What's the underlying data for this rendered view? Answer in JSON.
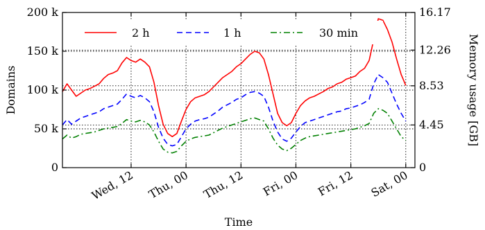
{
  "chart_data": {
    "type": "line",
    "title": "",
    "xlabel": "Time",
    "ylabel": "Domains",
    "y2label": "Memory usage [GB]",
    "grid": true,
    "legend_position": "top",
    "x_unit": "hours since Tue 21:00",
    "x_range": [
      0,
      77
    ],
    "x_ticks": [
      {
        "x": 15,
        "label": "Wed, 12"
      },
      {
        "x": 27,
        "label": "Thu, 00"
      },
      {
        "x": 39,
        "label": "Thu, 12"
      },
      {
        "x": 51,
        "label": "Fri, 00"
      },
      {
        "x": 63,
        "label": "Fri, 12"
      },
      {
        "x": 75,
        "label": "Sat, 00"
      }
    ],
    "ylim": [
      0,
      200000
    ],
    "y_ticks": [
      {
        "v": 0,
        "label": "0"
      },
      {
        "v": 50000,
        "label": "50 k"
      },
      {
        "v": 100000,
        "label": "100 k"
      },
      {
        "v": 150000,
        "label": "150 k"
      },
      {
        "v": 200000,
        "label": "200 k"
      }
    ],
    "y2_ticks": [
      {
        "v": 0,
        "label": "0"
      },
      {
        "v": 55000,
        "label": "4.45"
      },
      {
        "v": 105500,
        "label": "8.53"
      },
      {
        "v": 151500,
        "label": "12.26"
      },
      {
        "v": 200000,
        "label": "16.17"
      }
    ],
    "x": [
      0,
      1,
      2,
      3,
      4,
      5,
      6,
      7,
      8,
      9,
      10,
      11,
      12,
      13,
      14,
      15,
      16,
      17,
      18,
      19,
      20,
      21,
      22,
      23,
      24,
      25,
      26,
      27,
      28,
      29,
      30,
      31,
      32,
      33,
      34,
      35,
      36,
      37,
      38,
      39,
      40,
      41,
      42,
      43,
      44,
      45,
      46,
      47,
      48,
      49,
      50,
      51,
      52,
      53,
      54,
      55,
      56,
      57,
      58,
      59,
      60,
      61,
      62,
      63,
      64,
      65,
      66,
      67,
      68,
      69,
      70,
      71,
      72,
      73,
      74,
      75
    ],
    "series": [
      {
        "name": "2 h",
        "color": "#ff0000",
        "dash": "solid",
        "values": [
          98000,
          108000,
          100000,
          92000,
          96000,
          100000,
          102000,
          105000,
          108000,
          115000,
          120000,
          122000,
          125000,
          135000,
          142000,
          138000,
          136000,
          140000,
          136000,
          130000,
          110000,
          80000,
          56000,
          44000,
          40000,
          44000,
          60000,
          75000,
          85000,
          90000,
          92000,
          94000,
          98000,
          104000,
          110000,
          116000,
          120000,
          124000,
          130000,
          134000,
          140000,
          146000,
          150000,
          148000,
          140000,
          120000,
          95000,
          70000,
          58000,
          54000,
          58000,
          70000,
          80000,
          86000,
          90000,
          92000,
          95000,
          98000,
          102000,
          104000,
          108000,
          110000,
          114000,
          116000,
          118000,
          124000,
          128000,
          138000,
          165000,
          192000,
          190000,
          178000,
          162000,
          140000,
          120000,
          106000
        ]
      },
      {
        "name": "1 h",
        "color": "#0000ff",
        "dash": "8 5",
        "values": [
          55000,
          62000,
          56000,
          60000,
          64000,
          66000,
          68000,
          70000,
          72000,
          76000,
          78000,
          80000,
          82000,
          88000,
          95000,
          92000,
          90000,
          93000,
          90000,
          85000,
          72000,
          52000,
          38000,
          30000,
          28000,
          30000,
          40000,
          50000,
          56000,
          60000,
          62000,
          63000,
          65000,
          69000,
          73000,
          78000,
          81000,
          84000,
          88000,
          90000,
          94000,
          97000,
          98000,
          96000,
          92000,
          78000,
          60000,
          46000,
          37000,
          34000,
          38000,
          46000,
          53000,
          58000,
          60000,
          62000,
          64000,
          66000,
          68000,
          70000,
          72000,
          73000,
          76000,
          77000,
          79000,
          81000,
          84000,
          88000,
          108000,
          120000,
          116000,
          110000,
          96000,
          82000,
          70000,
          60000
        ]
      },
      {
        "name": "30 min",
        "color": "#008000",
        "dash": "9 4 2 4",
        "values": [
          37000,
          42000,
          38000,
          40000,
          43000,
          44000,
          45000,
          46000,
          48000,
          50000,
          51000,
          52000,
          53000,
          57000,
          62000,
          60000,
          59000,
          61000,
          59000,
          55000,
          46000,
          34000,
          24000,
          20000,
          19000,
          21000,
          28000,
          34000,
          37000,
          39000,
          40000,
          41000,
          42000,
          45000,
          48000,
          51000,
          53000,
          55000,
          57000,
          59000,
          61000,
          63000,
          64000,
          62000,
          60000,
          50000,
          38000,
          29000,
          24000,
          22000,
          25000,
          30000,
          35000,
          38000,
          40000,
          41000,
          42000,
          43000,
          44000,
          45000,
          46000,
          47000,
          48000,
          49000,
          50000,
          52000,
          54000,
          57000,
          70000,
          76000,
          74000,
          70000,
          60000,
          50000,
          40000,
          35000
        ]
      }
    ]
  }
}
